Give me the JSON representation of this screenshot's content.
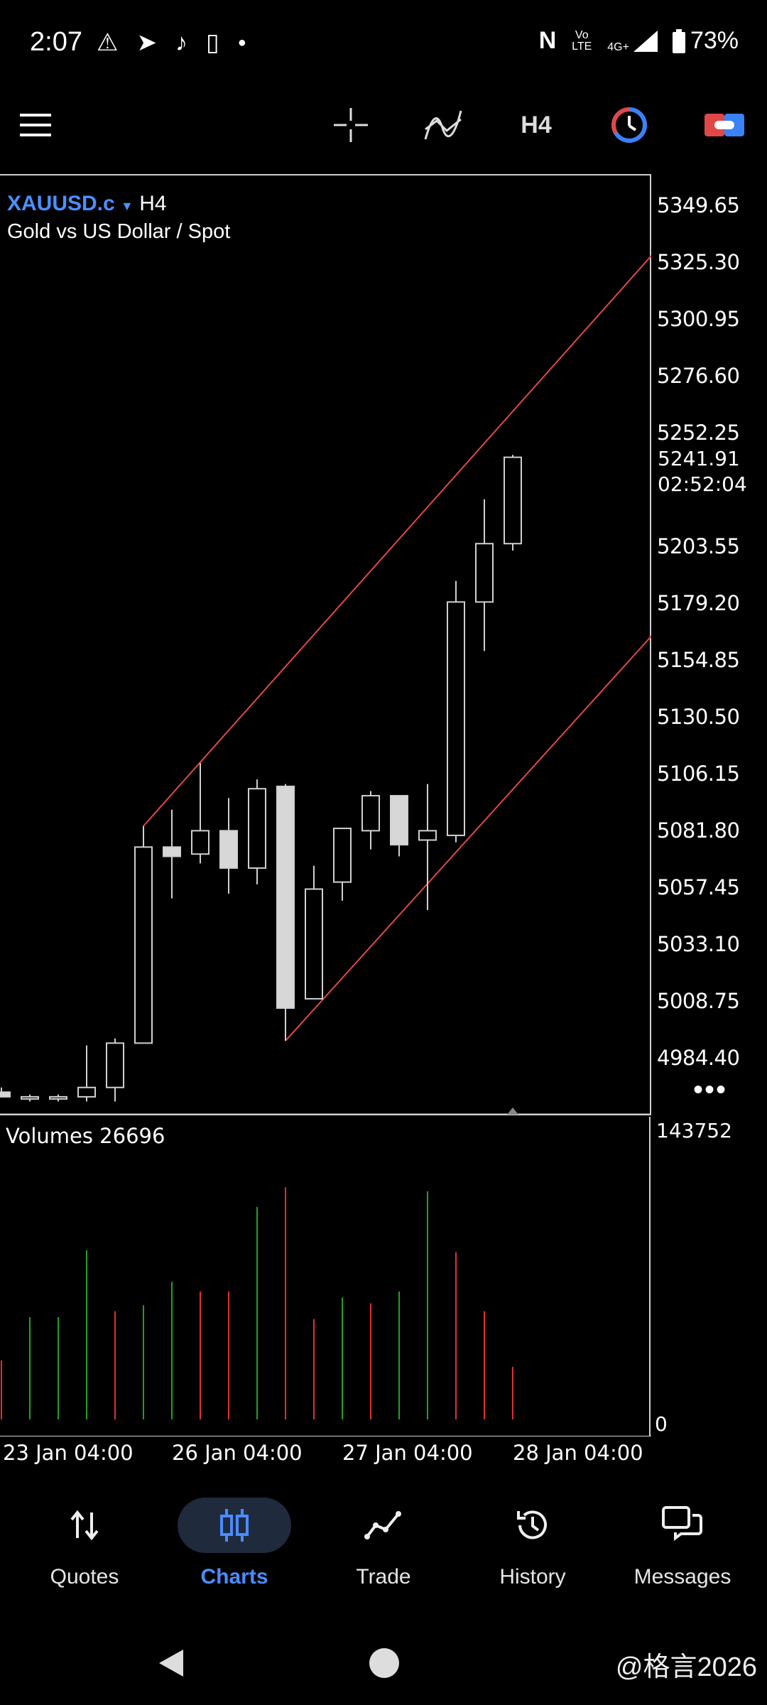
{
  "status_bar": {
    "time": "2:07",
    "battery": "73%",
    "icons": [
      "warning-icon",
      "send-icon",
      "tiktok-icon",
      "phone-sync-icon",
      "dot-icon"
    ],
    "right_icons": [
      "nfc-icon",
      "volte-icon",
      "4g-signal-icon",
      "battery-icon"
    ],
    "volte_label": "Vo LTE",
    "network_label": "4G+"
  },
  "toolbar": {
    "timeframe": "H4",
    "icons": [
      "menu-icon",
      "crosshair-icon",
      "indicators-icon",
      "timeframe-button",
      "clock-icon",
      "toggle-icon"
    ]
  },
  "chart": {
    "symbol": "XAUUSD.c",
    "timeframe": "H4",
    "subtitle": "Gold vs US Dollar / Spot",
    "price_tag": {
      "price": "5241.91",
      "countdown": "02:52:04"
    },
    "y_labels": [
      "5349.65",
      "5325.30",
      "5300.95",
      "5276.60",
      "5252.25",
      "5203.55",
      "5179.20",
      "5154.85",
      "5130.50",
      "5106.15",
      "5081.80",
      "5057.45",
      "5033.10",
      "5008.75",
      "4984.40"
    ],
    "x_labels": [
      "23 Jan 04:00",
      "26 Jan 04:00",
      "27 Jan 04:00",
      "28 Jan 04:00"
    ],
    "more_label": "•••"
  },
  "volumes": {
    "label": "Volumes 26696",
    "max_label": "143752",
    "zero_label": "0"
  },
  "chart_data": {
    "type": "candlestick",
    "symbol": "XAUUSD.c",
    "timeframe": "H4",
    "candles": [
      {
        "o": 4970,
        "h": 4972,
        "l": 4968,
        "c": 4968
      },
      {
        "o": 4968,
        "h": 4969,
        "l": 4966,
        "c": 4968
      },
      {
        "o": 4968,
        "h": 4969,
        "l": 4966,
        "c": 4968
      },
      {
        "o": 4968,
        "h": 4990,
        "l": 4966,
        "c": 4972
      },
      {
        "o": 4972,
        "h": 4993,
        "l": 4966,
        "c": 4991
      },
      {
        "o": 4991,
        "h": 5084,
        "l": 4991,
        "c": 5075
      },
      {
        "o": 5075,
        "h": 5091,
        "l": 5053,
        "c": 5071
      },
      {
        "o": 5072,
        "h": 5111,
        "l": 5068,
        "c": 5082
      },
      {
        "o": 5082,
        "h": 5096,
        "l": 5055,
        "c": 5066
      },
      {
        "o": 5066,
        "h": 5104,
        "l": 5059,
        "c": 5100
      },
      {
        "o": 5101,
        "h": 5102,
        "l": 4992,
        "c": 5006
      },
      {
        "o": 5010,
        "h": 5067,
        "l": 5010,
        "c": 5057
      },
      {
        "o": 5060,
        "h": 5083,
        "l": 5052,
        "c": 5083
      },
      {
        "o": 5082,
        "h": 5099,
        "l": 5074,
        "c": 5097
      },
      {
        "o": 5097,
        "h": 5097,
        "l": 5071,
        "c": 5076
      },
      {
        "o": 5078,
        "h": 5102,
        "l": 5048,
        "c": 5082
      },
      {
        "o": 5080,
        "h": 5189,
        "l": 5077,
        "c": 5180
      },
      {
        "o": 5180,
        "h": 5224,
        "l": 5159,
        "c": 5205
      },
      {
        "o": 5205,
        "h": 5243,
        "l": 5202,
        "c": 5242
      }
    ],
    "channel_lines": [
      {
        "from": {
          "index": 5,
          "price": 5084
        },
        "to": {
          "index": 23,
          "price": 5330
        }
      },
      {
        "from": {
          "index": 10,
          "price": 4992
        },
        "to": {
          "index": 23,
          "price": 5167
        }
      }
    ],
    "volumes": [
      {
        "v": 30000,
        "dir": "down"
      },
      {
        "v": 52000,
        "dir": "up"
      },
      {
        "v": 52000,
        "dir": "up"
      },
      {
        "v": 86000,
        "dir": "up"
      },
      {
        "v": 55000,
        "dir": "down"
      },
      {
        "v": 58000,
        "dir": "up"
      },
      {
        "v": 70000,
        "dir": "up"
      },
      {
        "v": 65000,
        "dir": "down"
      },
      {
        "v": 65000,
        "dir": "down"
      },
      {
        "v": 108000,
        "dir": "up"
      },
      {
        "v": 118000,
        "dir": "down"
      },
      {
        "v": 51000,
        "dir": "down"
      },
      {
        "v": 62000,
        "dir": "up"
      },
      {
        "v": 59000,
        "dir": "down"
      },
      {
        "v": 65000,
        "dir": "up"
      },
      {
        "v": 116000,
        "dir": "up"
      },
      {
        "v": 85000,
        "dir": "down"
      },
      {
        "v": 55000,
        "dir": "down"
      },
      {
        "v": 26696,
        "dir": "down"
      }
    ],
    "volume_max": 143752,
    "colors": {
      "up": "#22a022",
      "down": "#e03030",
      "channel": "#e04848",
      "candle_bull": "#000000",
      "candle_bear": "#d7d7d7"
    }
  },
  "bottom_nav": {
    "items": [
      {
        "label": "Quotes",
        "icon": "quotes-icon"
      },
      {
        "label": "Charts",
        "icon": "charts-icon",
        "active": true
      },
      {
        "label": "Trade",
        "icon": "trade-icon"
      },
      {
        "label": "History",
        "icon": "history-icon"
      },
      {
        "label": "Messages",
        "icon": "messages-icon"
      }
    ]
  },
  "watermark": "@格言2026"
}
